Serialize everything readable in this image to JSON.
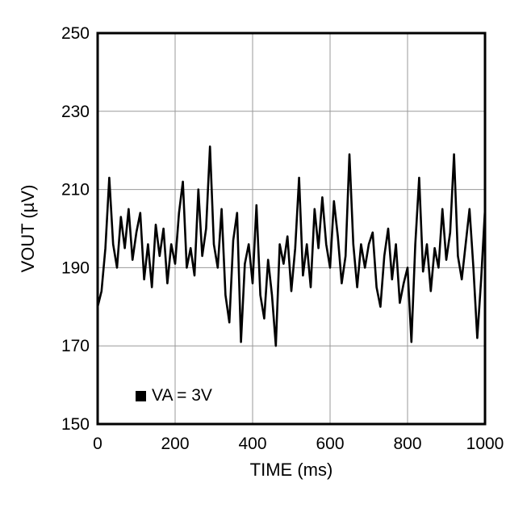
{
  "figure": {
    "xlabel": "TIME (ms)",
    "ylabel": "VOUT (µV)",
    "legend": {
      "label": "VA = 3V"
    }
  },
  "chart_data": {
    "type": "line",
    "title": "",
    "xlabel": "TIME (ms)",
    "ylabel": "VOUT (µV)",
    "xlim": [
      0,
      1000
    ],
    "ylim": [
      150,
      250
    ],
    "xticks": [
      0,
      200,
      400,
      600,
      800,
      1000
    ],
    "yticks": [
      150,
      170,
      190,
      210,
      230,
      250
    ],
    "grid": true,
    "legend_position": "lower-left",
    "colors": {
      "line": "#000000",
      "grid": "#999999",
      "frame": "#000000",
      "text": "#000000"
    },
    "series": [
      {
        "name": "VA = 3V",
        "x": [
          0,
          10,
          20,
          30,
          40,
          50,
          60,
          70,
          80,
          90,
          100,
          110,
          120,
          130,
          140,
          150,
          160,
          170,
          180,
          190,
          200,
          210,
          220,
          230,
          240,
          250,
          260,
          270,
          280,
          290,
          300,
          310,
          320,
          330,
          340,
          350,
          360,
          370,
          380,
          390,
          400,
          410,
          420,
          430,
          440,
          450,
          460,
          470,
          480,
          490,
          500,
          510,
          520,
          530,
          540,
          550,
          560,
          570,
          580,
          590,
          600,
          610,
          620,
          630,
          640,
          650,
          660,
          670,
          680,
          690,
          700,
          710,
          720,
          730,
          740,
          750,
          760,
          770,
          780,
          790,
          800,
          810,
          820,
          830,
          840,
          850,
          860,
          870,
          880,
          890,
          900,
          910,
          920,
          930,
          940,
          950,
          960,
          970,
          980,
          990,
          1000
        ],
        "values": [
          180,
          184,
          195,
          213,
          196,
          190,
          203,
          195,
          205,
          192,
          199,
          204,
          187,
          196,
          185,
          201,
          193,
          200,
          186,
          196,
          191,
          204,
          212,
          190,
          195,
          188,
          210,
          193,
          200,
          221,
          196,
          190,
          205,
          183,
          176,
          197,
          204,
          171,
          191,
          196,
          186,
          206,
          183,
          177,
          192,
          183,
          170,
          196,
          191,
          198,
          184,
          195,
          213,
          188,
          196,
          185,
          205,
          195,
          208,
          196,
          190,
          207,
          198,
          186,
          193,
          219,
          196,
          185,
          196,
          190,
          196,
          199,
          185,
          180,
          193,
          200,
          187,
          196,
          181,
          186,
          190,
          171,
          196,
          213,
          189,
          196,
          184,
          195,
          190,
          205,
          192,
          199,
          219,
          193,
          187,
          196,
          205,
          190,
          172,
          187,
          205
        ]
      }
    ]
  }
}
